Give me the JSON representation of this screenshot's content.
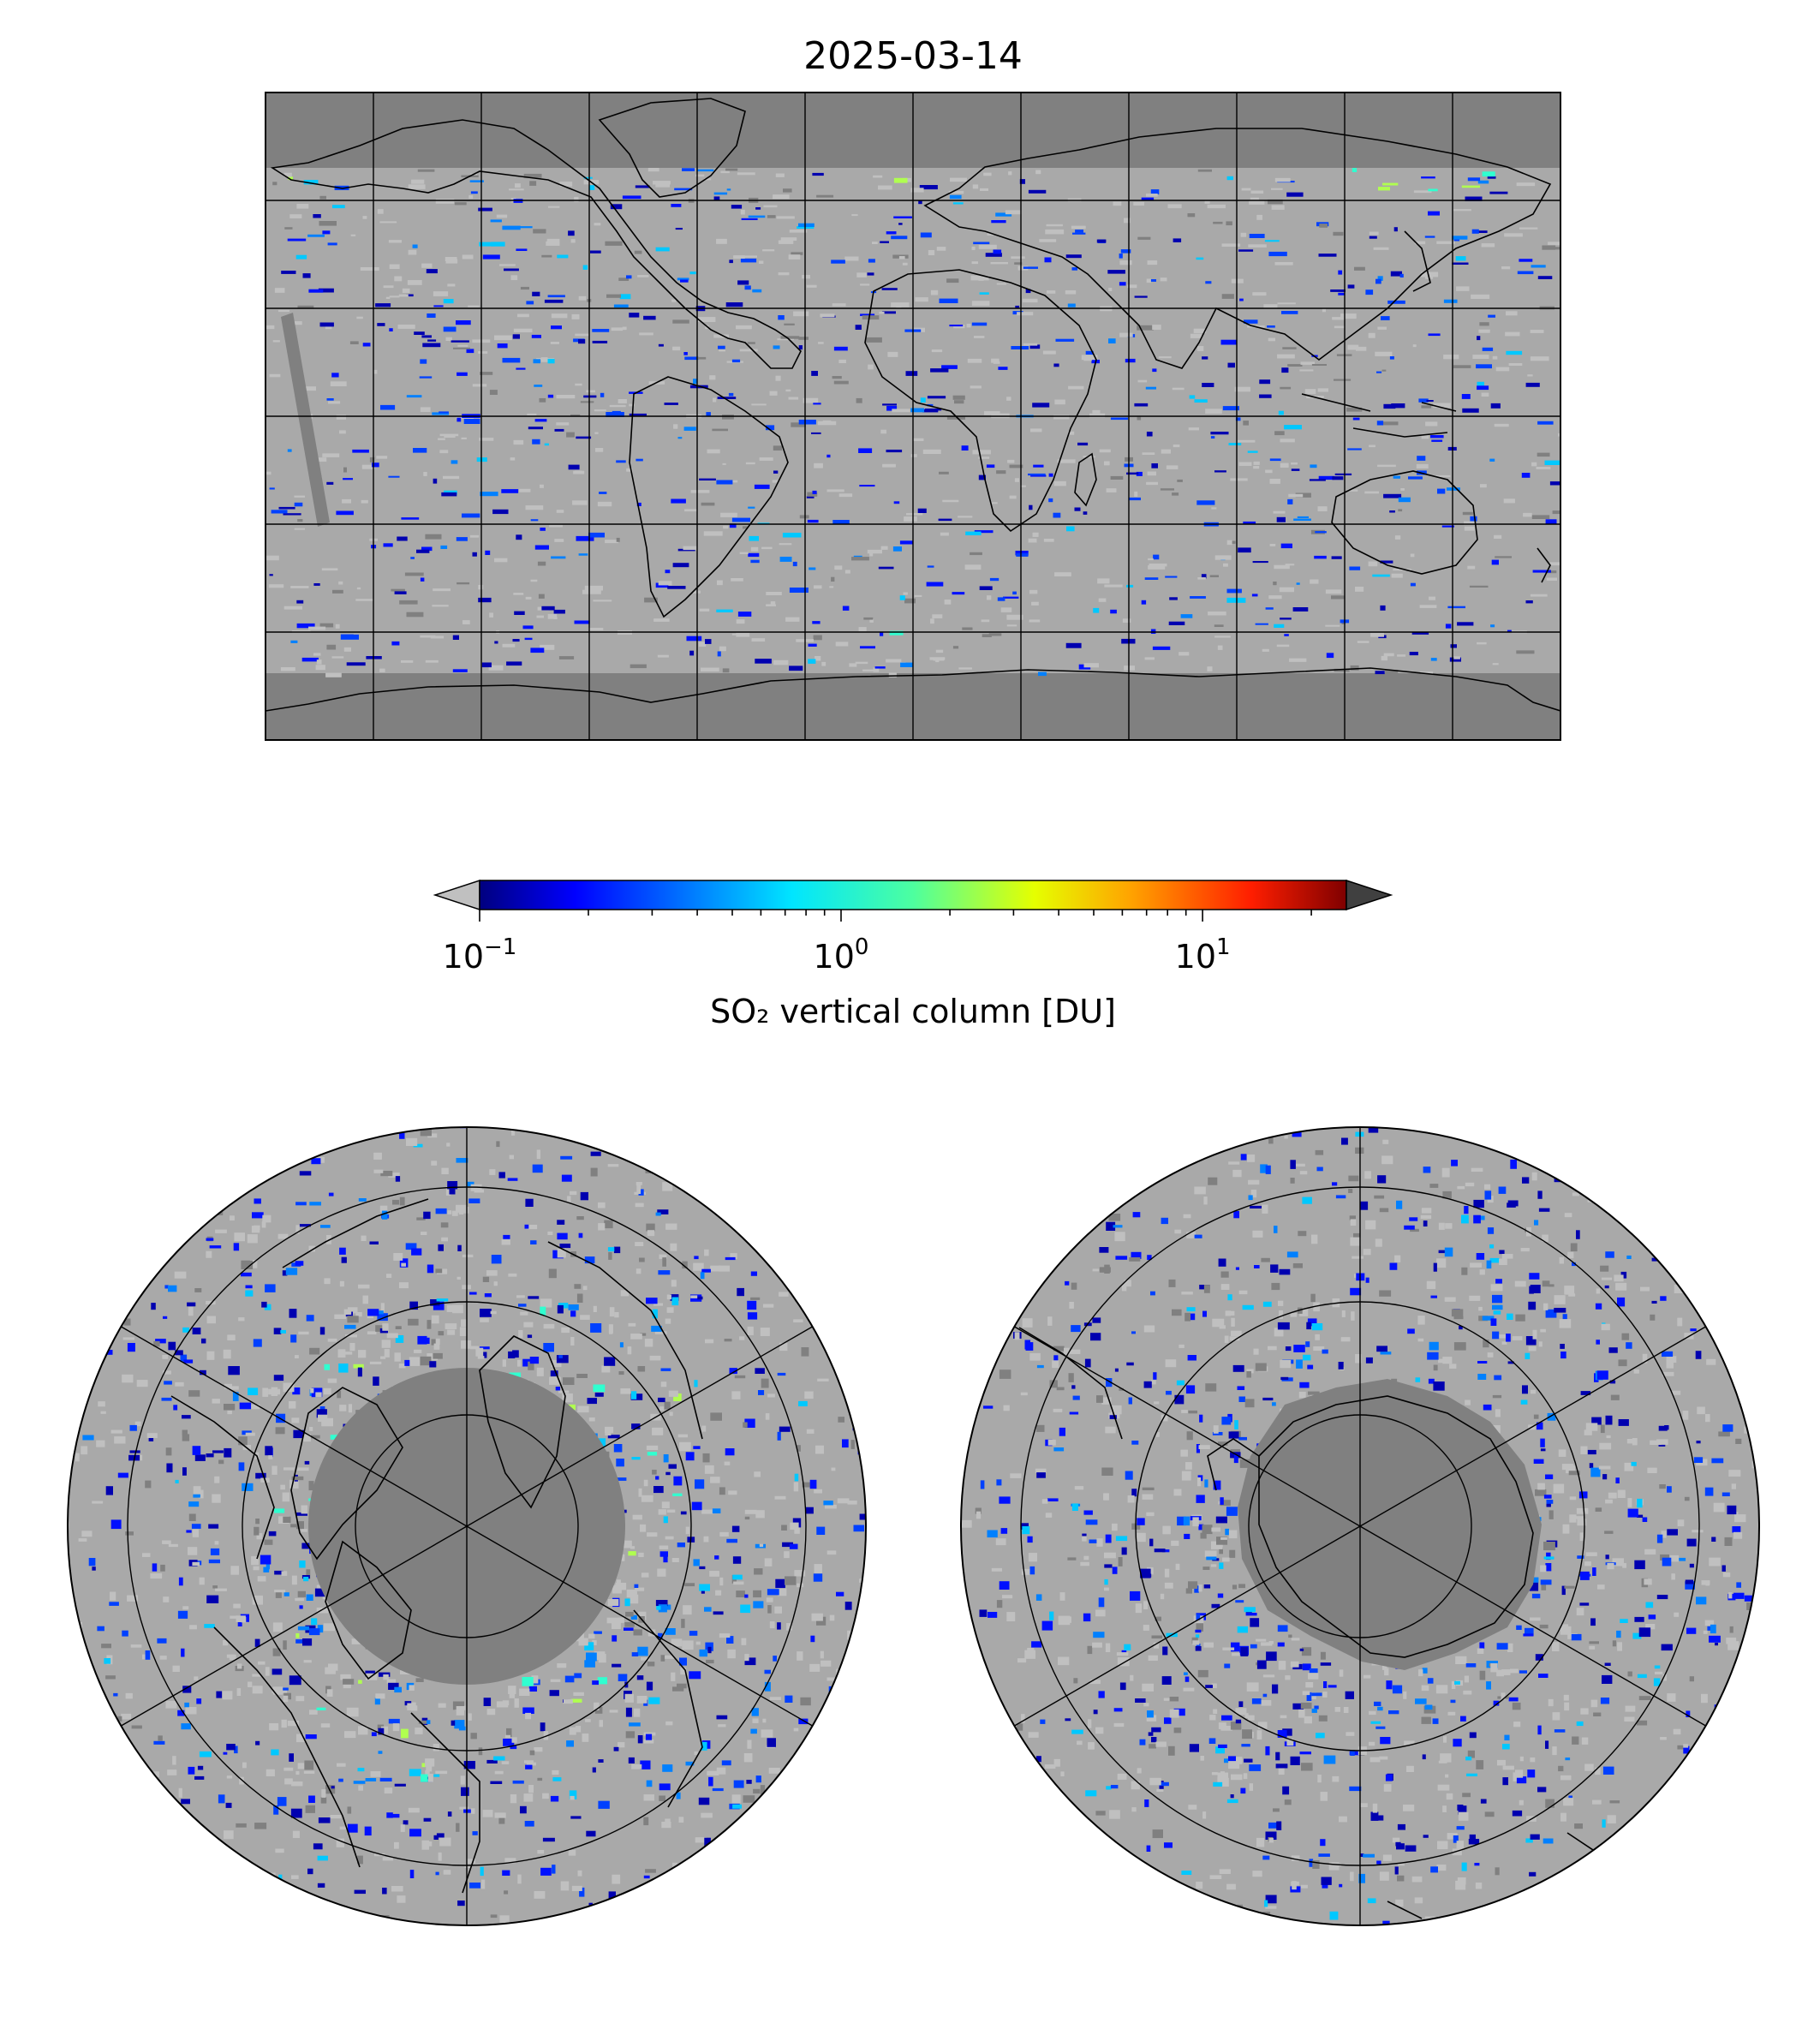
{
  "title": "2025-03-14",
  "colorbar": {
    "label": "SO₂ vertical column [DU]",
    "scale": "log",
    "range": [
      0.1,
      25
    ],
    "extend": "both",
    "under_color": "#c0c0c0",
    "over_color": "#404040",
    "colormap": "jet",
    "major_ticks": [
      {
        "value": 0.1,
        "base": "10",
        "exp": "−1"
      },
      {
        "value": 1,
        "base": "10",
        "exp": "0"
      },
      {
        "value": 10,
        "base": "10",
        "exp": "1"
      }
    ]
  },
  "maps": {
    "global": {
      "projection": "equirectangular",
      "graticule_lon_step": 30,
      "graticule_lat_step": 30,
      "nodata_color": "#808080"
    },
    "north_polar": {
      "projection": "north polar stereographic",
      "hemisphere": "north"
    },
    "south_polar": {
      "projection": "south polar stereographic",
      "hemisphere": "south"
    }
  },
  "colors": {
    "nodata": "#808080",
    "below_range": "#c0c0c0",
    "coastline": "#000000"
  }
}
